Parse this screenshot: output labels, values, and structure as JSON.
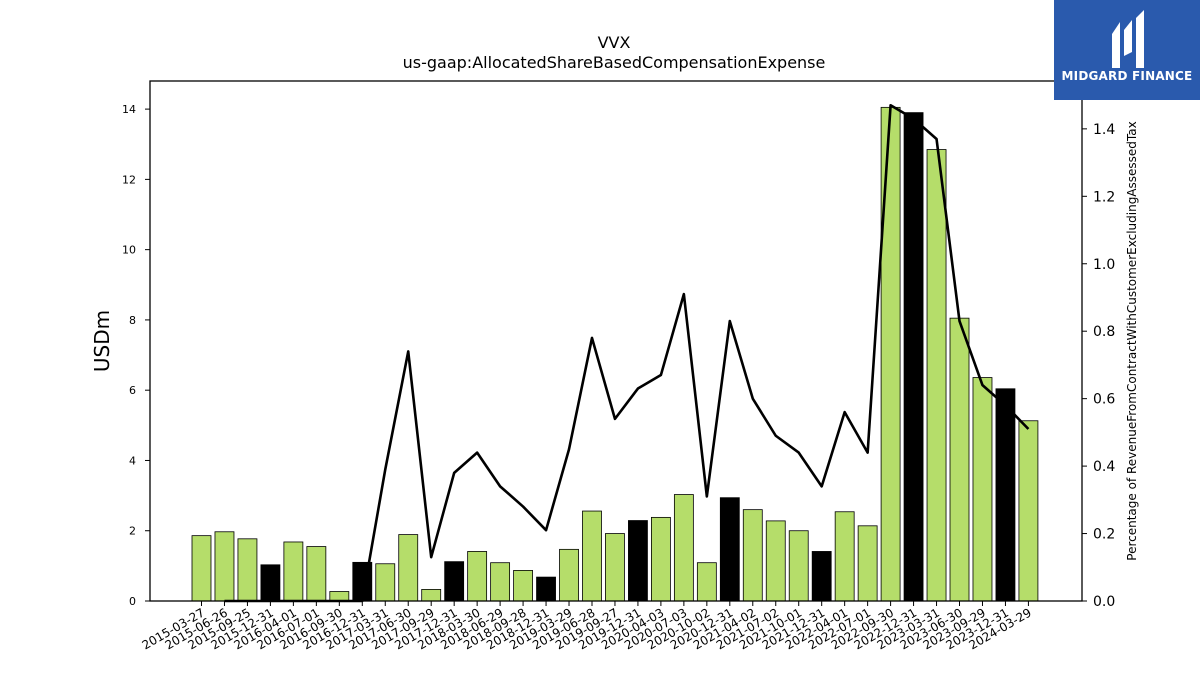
{
  "chart_data": {
    "type": "bar",
    "title": "VVX",
    "subtitle": "us-gaap:AllocatedShareBasedCompensationExpense",
    "ylabel": "USDm",
    "y2label": "Percentage of RevenueFromContractWithCustomerExcludingAssessedTax",
    "ylim": [
      0,
      14.8
    ],
    "y2lim": [
      0,
      1.5419
    ],
    "yticks": [
      0,
      2,
      4,
      6,
      8,
      10,
      12,
      14
    ],
    "y2ticks": [
      0.0,
      0.2,
      0.4,
      0.6,
      0.8,
      1.0,
      1.2,
      1.4
    ],
    "grid": false,
    "categories": [
      "2015-03-27",
      "2015-06-26",
      "2015-09-25",
      "2015-12-31",
      "2016-04-01",
      "2016-07-01",
      "2016-09-30",
      "2016-12-31",
      "2017-03-31",
      "2017-06-30",
      "2017-09-29",
      "2017-12-31",
      "2018-03-30",
      "2018-06-29",
      "2018-09-28",
      "2018-12-31",
      "2019-03-29",
      "2019-06-28",
      "2019-09-27",
      "2019-12-31",
      "2020-04-03",
      "2020-07-03",
      "2020-10-02",
      "2020-12-31",
      "2021-04-02",
      "2021-07-02",
      "2021-10-01",
      "2021-12-31",
      "2022-04-01",
      "2022-07-01",
      "2022-09-30",
      "2022-12-31",
      "2023-03-31",
      "2023-06-30",
      "2023-09-29",
      "2023-12-31",
      "2024-03-29"
    ],
    "series": [
      {
        "kind": "bar",
        "axis": "left",
        "values": [
          1.86,
          1.97,
          1.77,
          1.03,
          1.68,
          1.55,
          0.27,
          1.1,
          1.06,
          1.89,
          0.33,
          1.12,
          1.41,
          1.09,
          0.87,
          0.68,
          1.47,
          2.56,
          1.92,
          2.29,
          2.38,
          3.03,
          1.09,
          2.94,
          2.6,
          2.28,
          2.0,
          1.41,
          2.54,
          2.14,
          14.05,
          13.9,
          12.85,
          8.05,
          6.36,
          6.04,
          5.13
        ],
        "highlight": [
          false,
          false,
          false,
          true,
          false,
          false,
          false,
          true,
          false,
          false,
          false,
          true,
          false,
          false,
          false,
          true,
          false,
          false,
          false,
          true,
          false,
          false,
          false,
          true,
          false,
          false,
          false,
          true,
          false,
          false,
          false,
          true,
          false,
          false,
          false,
          true,
          false
        ]
      },
      {
        "kind": "line",
        "axis": "right",
        "values": [
          null,
          0.0,
          0.0,
          0.0,
          0.0,
          0.0,
          0.0,
          0.0,
          0.39,
          0.74,
          0.13,
          0.38,
          0.44,
          0.34,
          0.28,
          0.21,
          0.45,
          0.78,
          0.54,
          0.63,
          0.67,
          0.91,
          0.31,
          0.83,
          0.6,
          0.49,
          0.44,
          0.34,
          0.56,
          0.44,
          1.47,
          1.43,
          1.37,
          0.83,
          0.64,
          0.58,
          0.51
        ]
      }
    ],
    "colors": {
      "bar": "#b5dd6a",
      "bar_highlight": "#000000",
      "line": "#000000"
    }
  },
  "logo": {
    "text": "MIDGARD FINANCE",
    "bg": "#2a5aad"
  }
}
